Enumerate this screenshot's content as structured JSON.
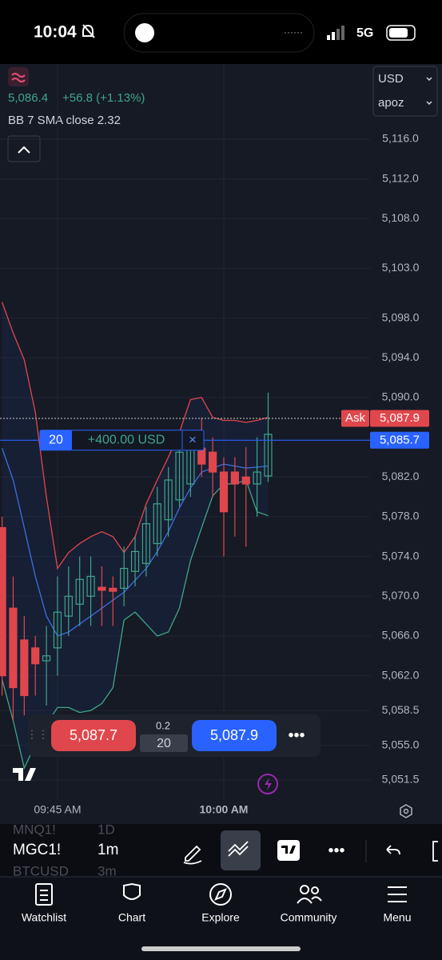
{
  "status_bar": {
    "time": "10:04",
    "network": "5G"
  },
  "header": {
    "price": "5,086.4",
    "change": "+56.8 (+1.13%)",
    "indicator": "BB 7 SMA close 2.32",
    "currency": "USD",
    "account": "apoz"
  },
  "chart_data": {
    "type": "candlestick",
    "categories": [
      null,
      null,
      null,
      null,
      null,
      "09:45 AM",
      null,
      null,
      null,
      null,
      null,
      null,
      null,
      null,
      null,
      null,
      null,
      null,
      null,
      null,
      "10:00 AM",
      null,
      null,
      null,
      null
    ],
    "open": [
      5076.9,
      5068.8,
      5065.6,
      5064.8,
      5063.5,
      5064.8,
      5068.0,
      5069.2,
      5070.0,
      5070.9,
      5070.8,
      5070.8,
      5072.5,
      5073.3,
      5075.3,
      5077.7,
      5079.7,
      5081.3,
      5084.9,
      5084.5,
      5082.5,
      5082.5,
      5082.0,
      5081.3,
      5082.1
    ],
    "high": [
      5078.0,
      5072.0,
      5068.0,
      5066.0,
      5067.0,
      5072.0,
      5073.0,
      5074.0,
      5074.0,
      5073.0,
      5072.0,
      5075.0,
      5076.0,
      5079.0,
      5081.0,
      5083.0,
      5086.0,
      5086.5,
      5088.0,
      5086.0,
      5084.0,
      5084.0,
      5085.0,
      5086.0,
      5090.5
    ],
    "low": [
      5060.0,
      5057.5,
      5058.0,
      5060.0,
      5059.0,
      5062.0,
      5066.0,
      5067.0,
      5067.0,
      5067.0,
      5067.0,
      5069.0,
      5071.0,
      5072.0,
      5074.0,
      5076.0,
      5079.0,
      5080.0,
      5082.0,
      5080.0,
      5074.0,
      5076.0,
      5075.0,
      5078.0,
      5081.5
    ],
    "close": [
      5062.0,
      5060.8,
      5060.0,
      5063.2,
      5064.0,
      5068.4,
      5070.0,
      5071.7,
      5072.0,
      5070.6,
      5070.5,
      5072.8,
      5074.5,
      5077.3,
      5079.3,
      5081.7,
      5084.5,
      5084.9,
      5083.3,
      5082.5,
      5078.5,
      5081.3,
      5081.3,
      5082.5,
      5086.3
    ],
    "up_color": "#3fa58a",
    "down_color": "#e0474c",
    "bands": [
      {
        "color": "#e0474c",
        "values": [
          5099.6,
          5096.5,
          5093.8,
          5088.5,
          5080.0,
          5072.8,
          5074.4,
          5075.3,
          5076.0,
          5076.5,
          5076.0,
          5074.4,
          5076.0,
          5079.3,
          5081.7,
          5084.0,
          5086.5,
          5089.8,
          5090.0,
          5088.0,
          5087.7,
          5087.7,
          5087.5,
          5087.7,
          5088.0
        ]
      },
      {
        "color": "#3b6fe0",
        "values": [
          5084.9,
          5081.7,
          5076.9,
          5072.0,
          5068.0,
          5066.0,
          5066.4,
          5067.2,
          5068.0,
          5068.8,
          5069.6,
          5070.4,
          5071.6,
          5072.8,
          5074.5,
          5076.5,
          5078.9,
          5080.9,
          5082.5,
          5082.9,
          5083.3,
          5083.1,
          5082.9,
          5083.0,
          5083.1
        ]
      },
      {
        "color": "#3fa58a",
        "values": [
          5061.6,
          5057.5,
          5052.7,
          5055.1,
          5057.1,
          5058.8,
          5058.8,
          5058.3,
          5058.5,
          5059.2,
          5060.8,
          5067.6,
          5068.4,
          5067.2,
          5066.0,
          5066.4,
          5068.8,
          5073.6,
          5076.9,
          5080.1,
          5081.3,
          5081.3,
          5081.7,
          5078.5,
          5078.1
        ]
      }
    ],
    "ylim": [
      5049.49,
      5123.57
    ],
    "yticks": [
      {
        "value": 5116,
        "label": "5,116.0"
      },
      {
        "value": 5112,
        "label": "5,112.0"
      },
      {
        "value": 5108,
        "label": "5,108.0"
      },
      {
        "value": 5103,
        "label": "5,103.0"
      },
      {
        "value": 5098,
        "label": "5,098.0"
      },
      {
        "value": 5094,
        "label": "5,094.0"
      },
      {
        "value": 5090,
        "label": "5,090.0"
      },
      {
        "value": 5082,
        "label": "5,082.0"
      },
      {
        "value": 5078,
        "label": "5,078.0"
      },
      {
        "value": 5074,
        "label": "5,074.0"
      },
      {
        "value": 5070,
        "label": "5,070.0"
      },
      {
        "value": 5066,
        "label": "5,066.0"
      },
      {
        "value": 5062,
        "label": "5,062.0"
      },
      {
        "value": 5058.5,
        "label": "5,058.5"
      },
      {
        "value": 5055,
        "label": "5,055.0"
      },
      {
        "value": 5051.5,
        "label": "5,051.5"
      }
    ],
    "grid": true,
    "price_lines": [
      {
        "name": "Ask",
        "value": 5087.9,
        "label": "5,087.9",
        "color": "#e0474c"
      },
      {
        "value": 5085.7,
        "label": "5,085.7",
        "color": "#2962ff"
      }
    ],
    "position": {
      "quantity": "20",
      "pnl": "+400.00 USD"
    }
  },
  "trade_bar": {
    "sell": "5,087.7",
    "spread": "0.2",
    "quantity": "20",
    "buy": "5,087.9"
  },
  "symbols": [
    {
      "symbol": "MNQ1!",
      "interval": "1D"
    },
    {
      "symbol": "MGC1!",
      "interval": "1m"
    },
    {
      "symbol": "BTCUSD",
      "interval": "3m"
    }
  ],
  "tabs": [
    "Watchlist",
    "Chart",
    "Explore",
    "Community",
    "Menu"
  ]
}
